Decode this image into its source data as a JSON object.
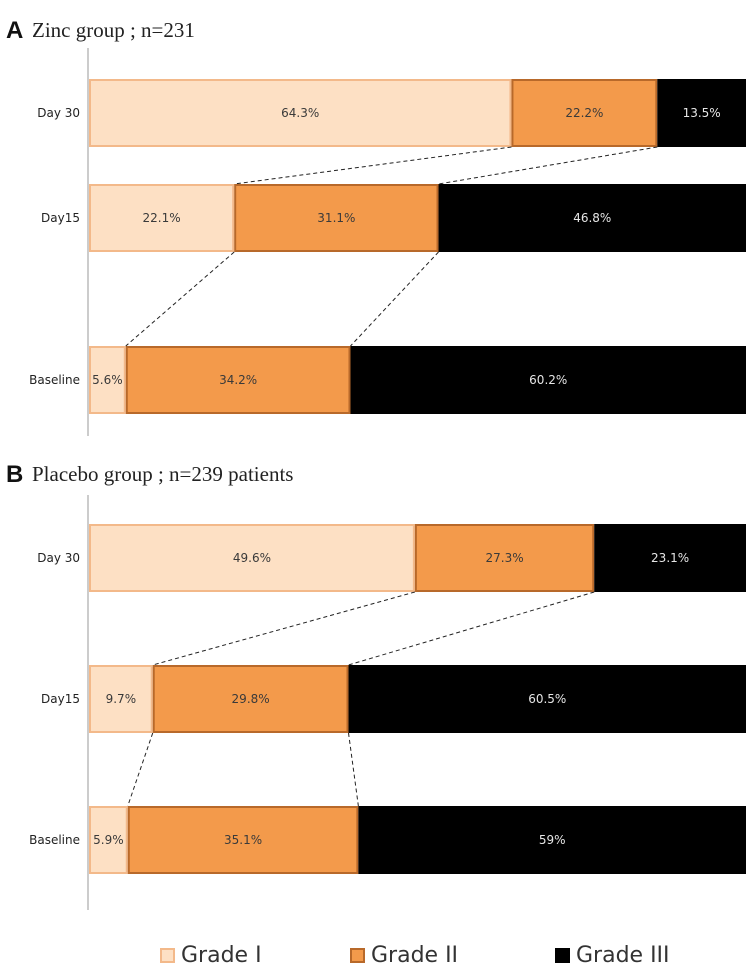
{
  "colors": {
    "grade1": "#fde0c4",
    "grade1_border": "#f3b98a",
    "grade2": "#f39a4b",
    "grade2_border": "#b8692a",
    "grade3": "#000000",
    "label_dark": "#3a3a3a",
    "label_light": "#e6e6e6"
  },
  "legend": {
    "grade1": "Grade I",
    "grade2": "Grade II",
    "grade3": "Grade III"
  },
  "chart_data": [
    {
      "type": "bar",
      "orientation": "horizontal-stacked-100",
      "panel": "A",
      "title": "Zinc group ; n=231",
      "categories": [
        "Day 30",
        "Day15",
        "Baseline"
      ],
      "series": [
        {
          "name": "Grade I",
          "values": [
            64.3,
            22.1,
            5.6
          ],
          "labels": [
            "64.3%",
            "22.1%",
            "5.6%"
          ]
        },
        {
          "name": "Grade II",
          "values": [
            22.2,
            31.1,
            34.2
          ],
          "labels": [
            "22.2%",
            "31.1%",
            "34.2%"
          ]
        },
        {
          "name": "Grade III",
          "values": [
            13.5,
            46.8,
            60.2
          ],
          "labels": [
            "13.5%",
            "46.8%",
            "60.2%"
          ]
        }
      ],
      "xlim": [
        0,
        100
      ],
      "grid": false,
      "legend_position": "bottom"
    },
    {
      "type": "bar",
      "orientation": "horizontal-stacked-100",
      "panel": "B",
      "title": "Placebo group ; n=239 patients",
      "categories": [
        "Day 30",
        "Day15",
        "Baseline"
      ],
      "series": [
        {
          "name": "Grade I",
          "values": [
            49.6,
            9.7,
            5.9
          ],
          "labels": [
            "49.6%",
            "9.7%",
            "5.9%"
          ]
        },
        {
          "name": "Grade II",
          "values": [
            27.3,
            29.8,
            35.1
          ],
          "labels": [
            "27.3%",
            "29.8%",
            "35.1%"
          ]
        },
        {
          "name": "Grade III",
          "values": [
            23.1,
            60.5,
            59
          ],
          "labels": [
            "23.1%",
            "60.5%",
            "59%"
          ]
        }
      ],
      "xlim": [
        0,
        100
      ],
      "grid": false,
      "legend_position": "bottom"
    }
  ]
}
